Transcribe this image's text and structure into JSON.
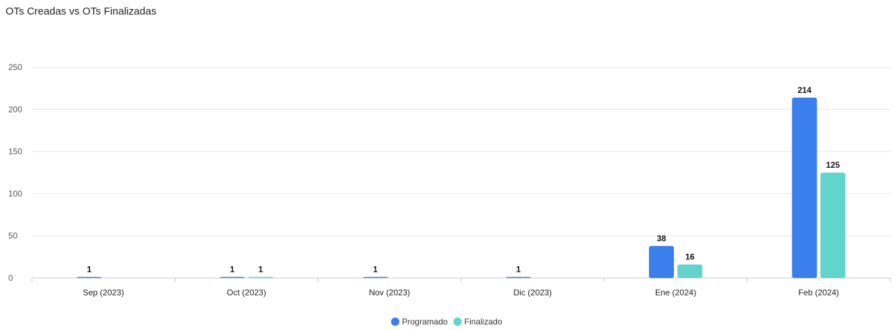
{
  "title": "OTs Creadas vs OTs Finalizadas",
  "chart_data": {
    "type": "bar",
    "title": "OTs Creadas vs OTs Finalizadas",
    "categories": [
      "Sep (2023)",
      "Oct (2023)",
      "Nov (2023)",
      "Dic (2023)",
      "Ene (2024)",
      "Feb (2024)"
    ],
    "series": [
      {
        "name": "Programado",
        "color": "#3a7fec",
        "values": [
          1,
          1,
          1,
          1,
          38,
          214
        ]
      },
      {
        "name": "Finalizado",
        "color": "#61d5cb",
        "values": [
          null,
          1,
          null,
          null,
          16,
          125
        ]
      }
    ],
    "ylim": [
      0,
      250
    ],
    "yticks": [
      0,
      50,
      100,
      150,
      200,
      250
    ],
    "xlabel": "",
    "ylabel": "",
    "grid": true,
    "legend": "bottom-center"
  }
}
